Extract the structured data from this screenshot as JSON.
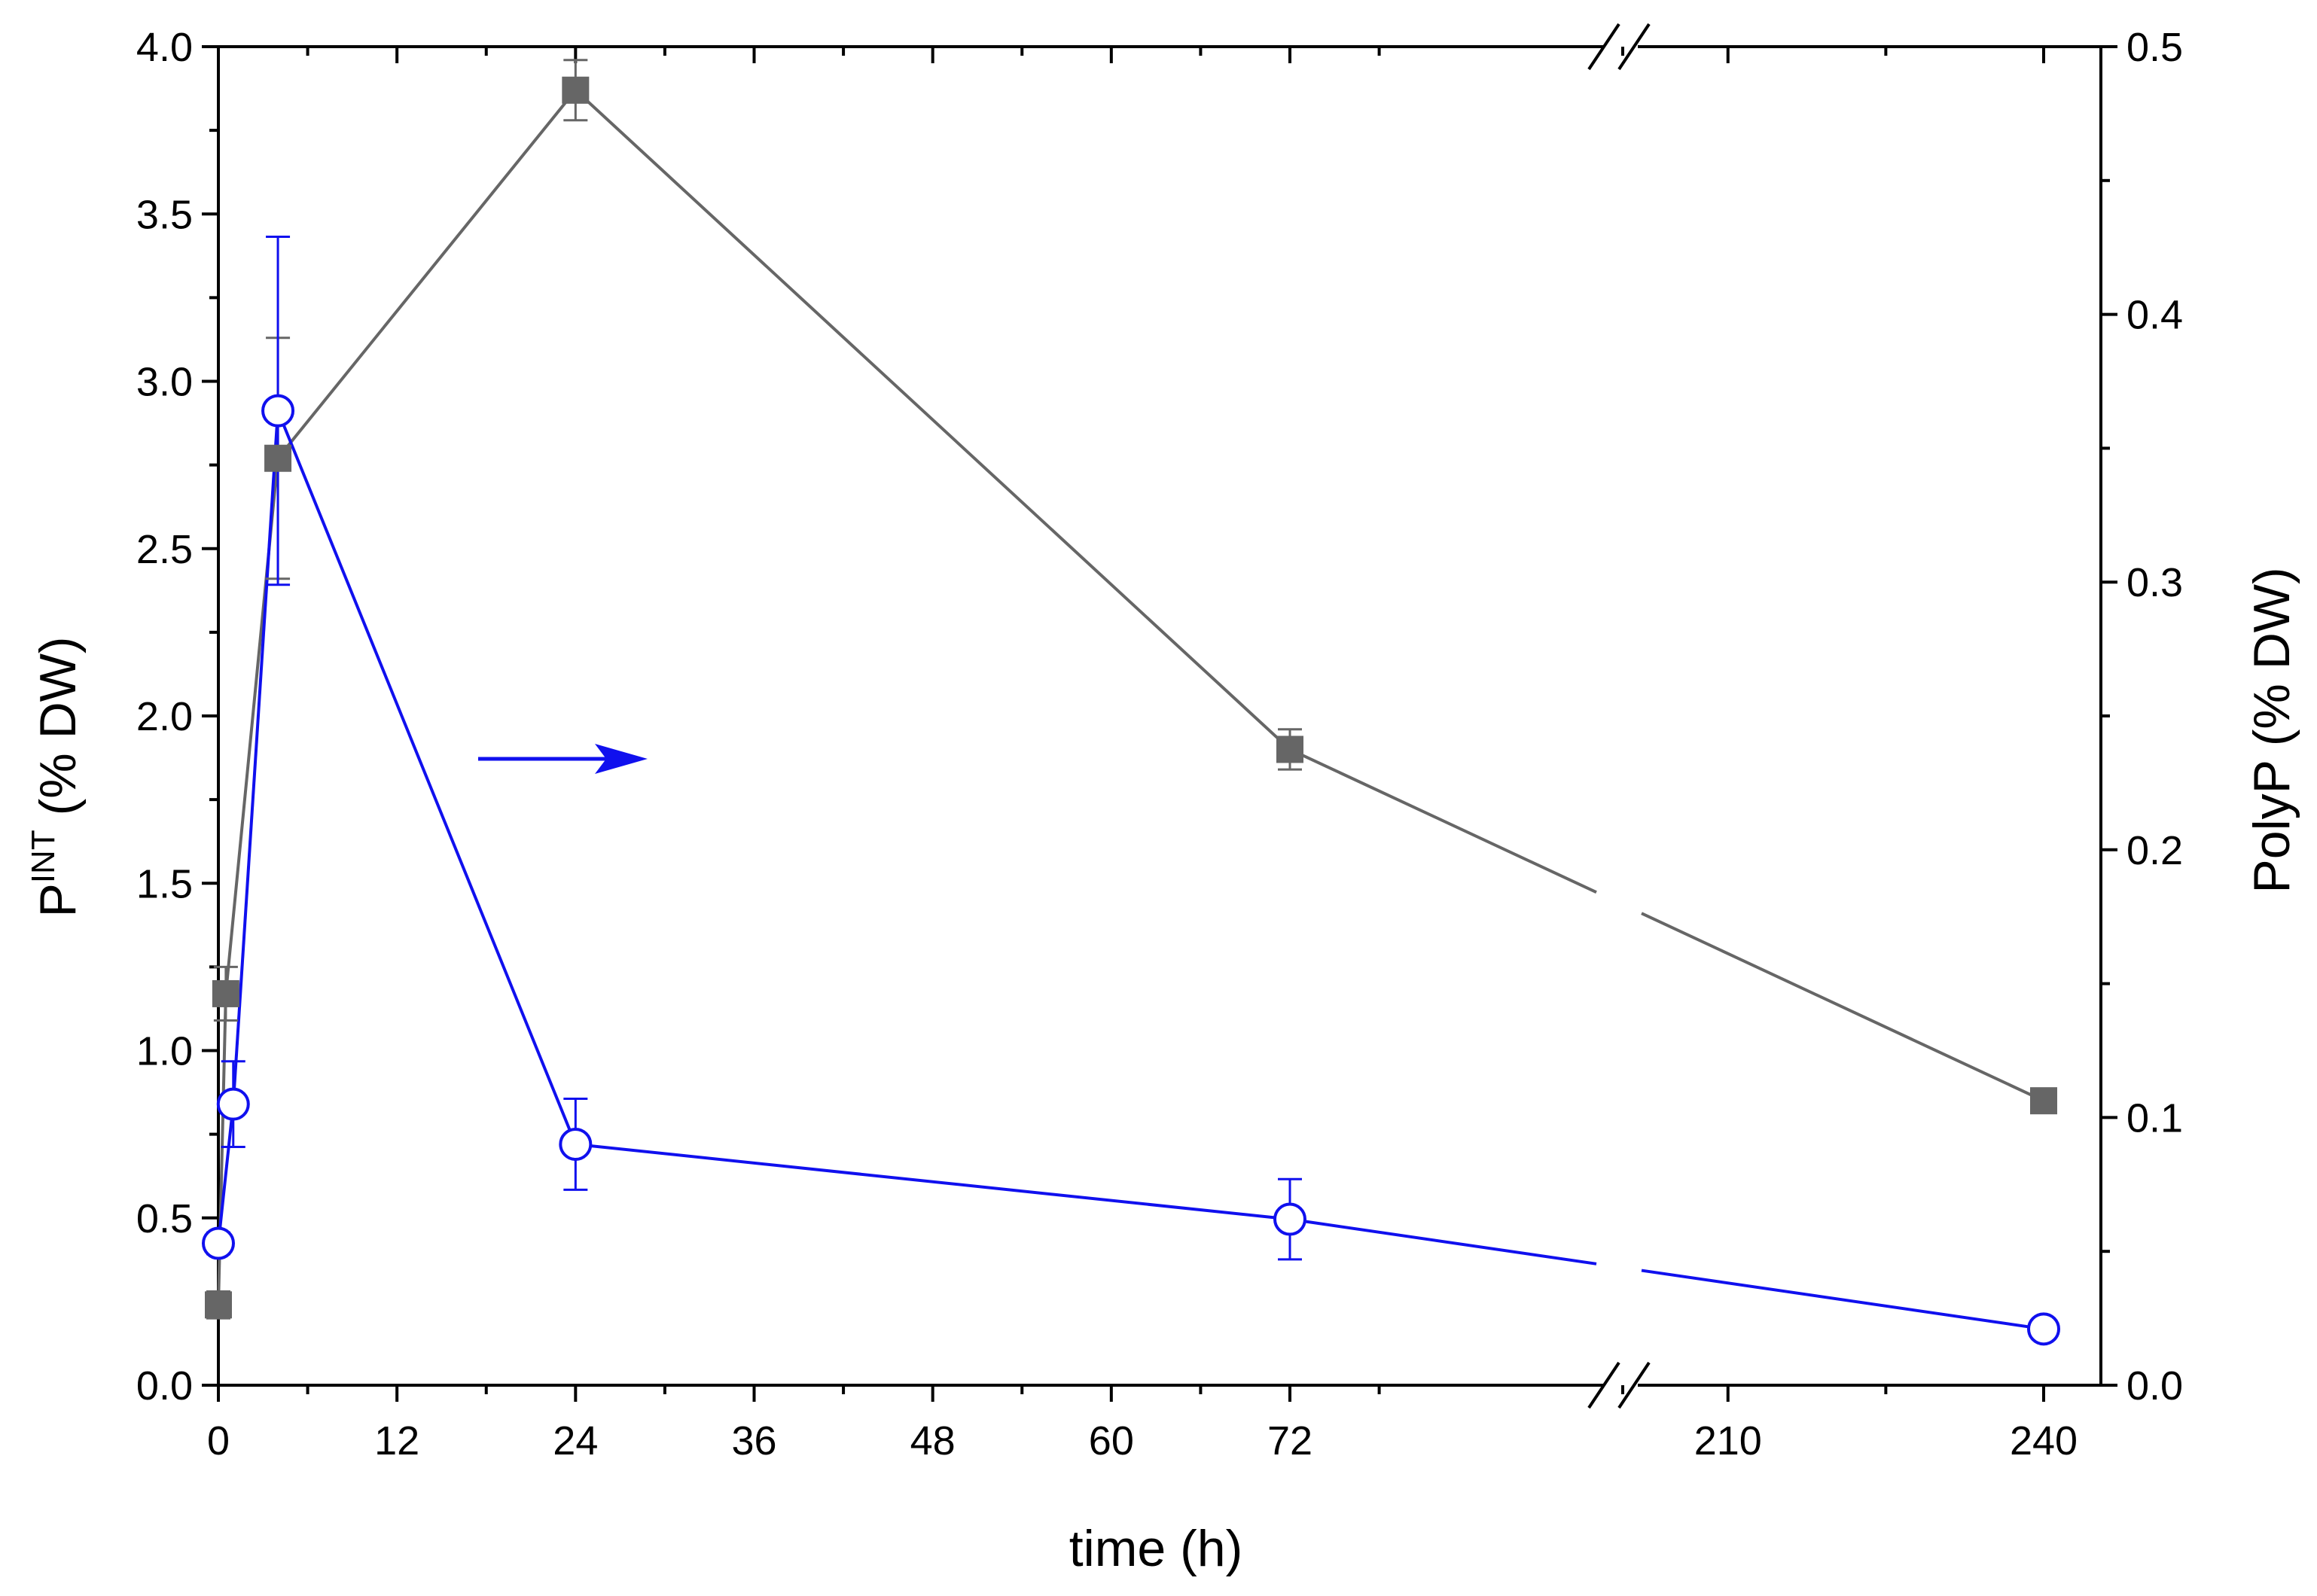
{
  "chart_data": {
    "type": "line",
    "xlabel": "time (h)",
    "ylabel_left": {
      "main": "P",
      "sup": "INT",
      "rest": " (% DW)"
    },
    "ylabel_right": "PolyP (% DW)",
    "x_ticks": {
      "segment1": [
        "0",
        "12",
        "24",
        "36",
        "48",
        "60",
        "72"
      ],
      "segment2": [
        "210",
        "240"
      ]
    },
    "x_break": {
      "from": 72,
      "to": 200
    },
    "xlim": [
      0,
      250
    ],
    "ylim_left": [
      0,
      4.0
    ],
    "ylim_right": [
      0,
      0.5
    ],
    "y_ticks_left": [
      "0.0",
      "0.5",
      "1.0",
      "1.5",
      "2.0",
      "2.5",
      "3.0",
      "3.5",
      "4.0"
    ],
    "y_ticks_right": [
      "0.0",
      "0.1",
      "0.2",
      "0.3",
      "0.4",
      "0.5"
    ],
    "series": [
      {
        "axis": "left",
        "color": "#666666",
        "marker": "filled-square",
        "x": [
          0,
          0.5,
          4,
          24,
          72,
          240
        ],
        "y": [
          0.24,
          1.17,
          2.77,
          3.87,
          1.9,
          0.85
        ],
        "err": [
          0.04,
          0.08,
          0.36,
          0.09,
          0.06,
          0.02
        ]
      },
      {
        "axis": "right",
        "color": "#1010ee",
        "marker": "open-circle",
        "x": [
          0,
          1,
          4,
          24,
          72,
          240
        ],
        "y": [
          0.053,
          0.105,
          0.364,
          0.09,
          0.062,
          0.021
        ],
        "err": [
          0.004,
          0.016,
          0.065,
          0.017,
          0.015,
          0.003
        ]
      }
    ],
    "annotation": {
      "type": "arrow",
      "direction": "right",
      "color": "#1010ee",
      "meaning": "blue series uses right axis"
    },
    "grid": false,
    "legend": "none"
  }
}
